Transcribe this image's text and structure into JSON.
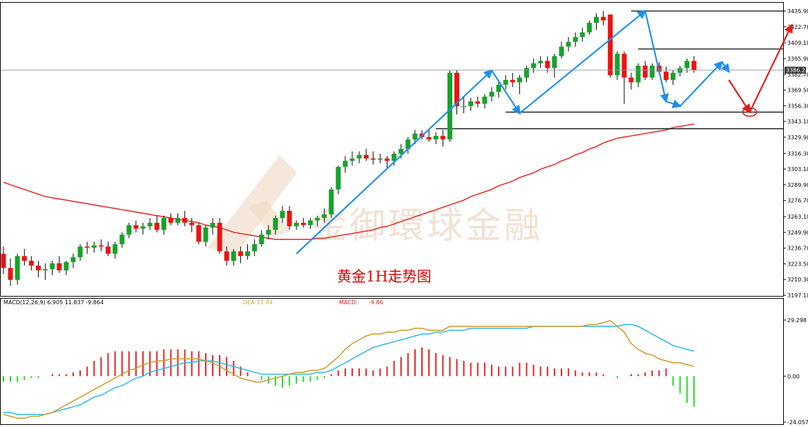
{
  "chart_title": "黄金1H走势图",
  "watermark_text": "金御環球金融",
  "colors": {
    "bull": "#15a32b",
    "bear": "#ee1111",
    "ma_line": "#e03131",
    "arrow_blue": "#1f8fef",
    "arrow_red": "#e21b1b",
    "macd_line": "#cc9a22",
    "signal_line": "#2ab7ea",
    "hist_pos": "#e42222",
    "hist_neg": "#22dd22",
    "info_blue": "#1f6fd0",
    "info_gold": "#c9a52a",
    "info_red": "#dd1111"
  },
  "main_panel": {
    "current_price": "3386.23",
    "y_labels": [
      "3435.90",
      "3422.70",
      "3409.10",
      "3395.90",
      "3382.70",
      "3369.50",
      "3356.30",
      "3343.10",
      "3329.90",
      "3316.30",
      "3303.10",
      "3289.90",
      "3276.70",
      "3263.10",
      "3249.90",
      "3236.70",
      "3223.50",
      "3210.30",
      "3197.10"
    ]
  },
  "macd_panel": {
    "info_name": "MACD(12,26,9) 6.905 11.837 -9.864",
    "dea_label": "DEA:",
    "dea_value": "11.84",
    "macd_label": "MACD:",
    "macd_value": "-9.86",
    "y_labels": [
      "29.298",
      "0.00",
      "-24.057"
    ]
  },
  "chart_data": [
    {
      "type": "candlestick",
      "title": "黄金1H走势图",
      "ylim": [
        3197.1,
        3435.9
      ],
      "ohlc": [
        [
          3232,
          3238,
          3215,
          3220
        ],
        [
          3220,
          3228,
          3205,
          3210
        ],
        [
          3210,
          3232,
          3206,
          3230
        ],
        [
          3230,
          3236,
          3222,
          3226
        ],
        [
          3226,
          3230,
          3218,
          3222
        ],
        [
          3222,
          3226,
          3212,
          3218
        ],
        [
          3218,
          3224,
          3210,
          3219
        ],
        [
          3219,
          3226,
          3214,
          3224
        ],
        [
          3224,
          3230,
          3216,
          3218
        ],
        [
          3218,
          3226,
          3214,
          3225
        ],
        [
          3225,
          3232,
          3220,
          3229
        ],
        [
          3229,
          3240,
          3226,
          3238
        ],
        [
          3238,
          3242,
          3232,
          3237
        ],
        [
          3237,
          3242,
          3233,
          3239
        ],
        [
          3239,
          3244,
          3234,
          3238
        ],
        [
          3238,
          3242,
          3230,
          3232
        ],
        [
          3232,
          3242,
          3228,
          3240
        ],
        [
          3240,
          3250,
          3237,
          3248
        ],
        [
          3248,
          3258,
          3245,
          3256
        ],
        [
          3256,
          3260,
          3250,
          3253
        ],
        [
          3253,
          3258,
          3248,
          3255
        ],
        [
          3255,
          3262,
          3252,
          3258
        ],
        [
          3258,
          3264,
          3250,
          3252
        ],
        [
          3252,
          3264,
          3248,
          3262
        ],
        [
          3262,
          3266,
          3256,
          3258
        ],
        [
          3258,
          3266,
          3256,
          3262
        ],
        [
          3262,
          3268,
          3255,
          3258
        ],
        [
          3258,
          3262,
          3250,
          3256
        ],
        [
          3256,
          3258,
          3240,
          3242
        ],
        [
          3242,
          3256,
          3238,
          3254
        ],
        [
          3254,
          3262,
          3248,
          3258
        ],
        [
          3258,
          3262,
          3232,
          3234
        ],
        [
          3234,
          3238,
          3222,
          3226
        ],
        [
          3226,
          3236,
          3222,
          3234
        ],
        [
          3234,
          3238,
          3224,
          3230
        ],
        [
          3230,
          3240,
          3227,
          3234
        ],
        [
          3234,
          3244,
          3230,
          3240
        ],
        [
          3240,
          3252,
          3238,
          3248
        ],
        [
          3248,
          3256,
          3244,
          3252
        ],
        [
          3252,
          3264,
          3248,
          3262
        ],
        [
          3262,
          3272,
          3258,
          3268
        ],
        [
          3268,
          3272,
          3252,
          3255
        ],
        [
          3255,
          3260,
          3252,
          3258
        ],
        [
          3258,
          3262,
          3254,
          3256
        ],
        [
          3256,
          3262,
          3253,
          3260
        ],
        [
          3260,
          3264,
          3255,
          3262
        ],
        [
          3262,
          3270,
          3258,
          3265
        ],
        [
          3265,
          3288,
          3262,
          3286
        ],
        [
          3286,
          3306,
          3282,
          3305
        ],
        [
          3305,
          3314,
          3300,
          3310
        ],
        [
          3310,
          3318,
          3306,
          3312
        ],
        [
          3312,
          3318,
          3308,
          3315
        ],
        [
          3315,
          3320,
          3310,
          3312
        ],
        [
          3312,
          3318,
          3307,
          3311
        ],
        [
          3311,
          3316,
          3308,
          3312
        ],
        [
          3312,
          3314,
          3304,
          3310
        ],
        [
          3310,
          3318,
          3306,
          3316
        ],
        [
          3316,
          3324,
          3312,
          3320
        ],
        [
          3320,
          3330,
          3316,
          3328
        ],
        [
          3328,
          3336,
          3324,
          3333
        ],
        [
          3333,
          3336,
          3328,
          3330
        ],
        [
          3330,
          3336,
          3326,
          3328
        ],
        [
          3328,
          3334,
          3324,
          3331
        ],
        [
          3331,
          3336,
          3322,
          3328
        ],
        [
          3328,
          3386,
          3326,
          3384
        ],
        [
          3384,
          3386,
          3349,
          3356
        ],
        [
          3356,
          3364,
          3350,
          3356
        ],
        [
          3356,
          3363,
          3352,
          3360
        ],
        [
          3360,
          3364,
          3355,
          3358
        ],
        [
          3358,
          3366,
          3354,
          3364
        ],
        [
          3364,
          3372,
          3360,
          3368
        ],
        [
          3368,
          3376,
          3363,
          3374
        ],
        [
          3374,
          3382,
          3370,
          3378
        ],
        [
          3378,
          3384,
          3372,
          3376
        ],
        [
          3376,
          3382,
          3366,
          3380
        ],
        [
          3380,
          3390,
          3376,
          3388
        ],
        [
          3388,
          3396,
          3384,
          3392
        ],
        [
          3392,
          3398,
          3388,
          3394
        ],
        [
          3394,
          3398,
          3384,
          3388
        ],
        [
          3388,
          3400,
          3380,
          3398
        ],
        [
          3398,
          3410,
          3396,
          3406
        ],
        [
          3406,
          3414,
          3402,
          3410
        ],
        [
          3410,
          3418,
          3406,
          3414
        ],
        [
          3414,
          3422,
          3410,
          3418
        ],
        [
          3418,
          3428,
          3416,
          3426
        ],
        [
          3426,
          3434,
          3420,
          3431
        ],
        [
          3431,
          3436,
          3424,
          3428
        ],
        [
          3433,
          3433,
          3380,
          3382
        ],
        [
          3382,
          3402,
          3378,
          3400
        ],
        [
          3400,
          3402,
          3358,
          3380
        ],
        [
          3380,
          3384,
          3370,
          3376
        ],
        [
          3376,
          3392,
          3372,
          3390
        ],
        [
          3390,
          3394,
          3378,
          3380
        ],
        [
          3380,
          3392,
          3378,
          3390
        ],
        [
          3390,
          3393,
          3383,
          3385
        ],
        [
          3385,
          3389,
          3376,
          3378
        ],
        [
          3378,
          3386,
          3374,
          3384
        ],
        [
          3384,
          3390,
          3381,
          3388
        ],
        [
          3388,
          3396,
          3384,
          3394
        ],
        [
          3394,
          3398,
          3384,
          3386
        ]
      ],
      "moving_average": [
        3292,
        3290,
        3288,
        3286,
        3284,
        3282,
        3280,
        3279,
        3278,
        3277,
        3276,
        3275,
        3274,
        3273,
        3272,
        3271,
        3270,
        3269,
        3268,
        3267,
        3266,
        3265,
        3264,
        3263,
        3262,
        3261,
        3260,
        3259,
        3258,
        3256,
        3255,
        3254,
        3252,
        3250,
        3249,
        3248,
        3247,
        3246,
        3245,
        3244,
        3244,
        3244,
        3244,
        3244,
        3244,
        3245,
        3245,
        3246,
        3247,
        3248,
        3249,
        3250,
        3251,
        3252,
        3254,
        3255,
        3257,
        3259,
        3261,
        3263,
        3265,
        3267,
        3269,
        3271,
        3273,
        3275,
        3277,
        3280,
        3282,
        3284,
        3286,
        3289,
        3291,
        3293,
        3296,
        3298,
        3300,
        3303,
        3305,
        3307,
        3310,
        3312,
        3315,
        3317,
        3320,
        3322,
        3325,
        3327,
        3329,
        3330,
        3331,
        3332,
        3333,
        3334,
        3335,
        3336,
        3338,
        3339,
        3340,
        3341
      ],
      "annotations": {
        "horizontal_levels": [
          3435.9,
          3404,
          3351,
          3337
        ],
        "blue_arrows": [
          [
            42,
            3232
          ],
          [
            70,
            3386
          ],
          [
            74,
            3350
          ],
          [
            92,
            3436
          ],
          [
            95,
            3360
          ],
          [
            97,
            3356
          ],
          [
            103,
            3393
          ],
          [
            104,
            3385
          ]
        ],
        "red_arrows": [
          [
            104,
            3378
          ],
          [
            107,
            3351
          ],
          [
            113,
            3424
          ]
        ],
        "target_circle": [
          107,
          3351
        ]
      }
    },
    {
      "type": "macd",
      "ylim": [
        -24.057,
        29.298
      ],
      "histogram": [
        -3,
        -3,
        -3,
        -2,
        -1,
        -1,
        0,
        1,
        1,
        1,
        2,
        3,
        5,
        8,
        10,
        12,
        13,
        13,
        13,
        13,
        13,
        13,
        13,
        14,
        14,
        14,
        14,
        13,
        13,
        12,
        11,
        11,
        10,
        8,
        5,
        2,
        0,
        -2,
        -4,
        -5,
        -6,
        -5,
        -4,
        -3,
        -3,
        -2,
        -1,
        1,
        3,
        4,
        4,
        4,
        4,
        3,
        4,
        5,
        8,
        10,
        12,
        14,
        15,
        14,
        12,
        11,
        10,
        9,
        8,
        7,
        7,
        7,
        6,
        5,
        5,
        5,
        7,
        7,
        6,
        5,
        5,
        4,
        4,
        4,
        3,
        2,
        2,
        2,
        1,
        0,
        -1,
        0,
        1,
        1,
        2,
        3,
        3,
        4,
        -5,
        -9,
        -14,
        -16
      ],
      "macd_line": [
        -20,
        -21,
        -22,
        -22,
        -21,
        -21,
        -20,
        -19,
        -17,
        -15,
        -13,
        -11,
        -9,
        -7,
        -5,
        -3,
        -1,
        1,
        3,
        4,
        6,
        7,
        8,
        8,
        9,
        9,
        9,
        9,
        9,
        8,
        7,
        5,
        3,
        1,
        -1,
        -2,
        -3,
        -3,
        -2,
        -1,
        0,
        1,
        2,
        2,
        3,
        3,
        4,
        7,
        10,
        14,
        17,
        19,
        21,
        22,
        22,
        23,
        23,
        24,
        24,
        25,
        25,
        24,
        24,
        24,
        26,
        26,
        26,
        26,
        26,
        26,
        26,
        26,
        26,
        26,
        26,
        26,
        26,
        26,
        26,
        26,
        26,
        26,
        26,
        26,
        27,
        27,
        28,
        29,
        26,
        23,
        17,
        14,
        12,
        11,
        9,
        8,
        7,
        7,
        6,
        5
      ],
      "signal_line": [
        -19,
        -19,
        -20,
        -20,
        -20,
        -20,
        -20,
        -19,
        -18,
        -17,
        -16,
        -15,
        -13,
        -11,
        -10,
        -8,
        -6,
        -5,
        -3,
        -1,
        0,
        2,
        3,
        4,
        5,
        6,
        7,
        7,
        8,
        8,
        8,
        7,
        6,
        5,
        4,
        3,
        2,
        1,
        1,
        1,
        1,
        1,
        1,
        1,
        1,
        2,
        2,
        3,
        5,
        7,
        9,
        11,
        13,
        15,
        16,
        17,
        18,
        19,
        20,
        21,
        22,
        22,
        23,
        23,
        24,
        24,
        24,
        25,
        25,
        25,
        25,
        25,
        25,
        25,
        25,
        25,
        26,
        26,
        26,
        26,
        26,
        26,
        26,
        26,
        26,
        26,
        26,
        26,
        26,
        27,
        27,
        26,
        24,
        22,
        20,
        18,
        16,
        15,
        14,
        13
      ]
    }
  ]
}
